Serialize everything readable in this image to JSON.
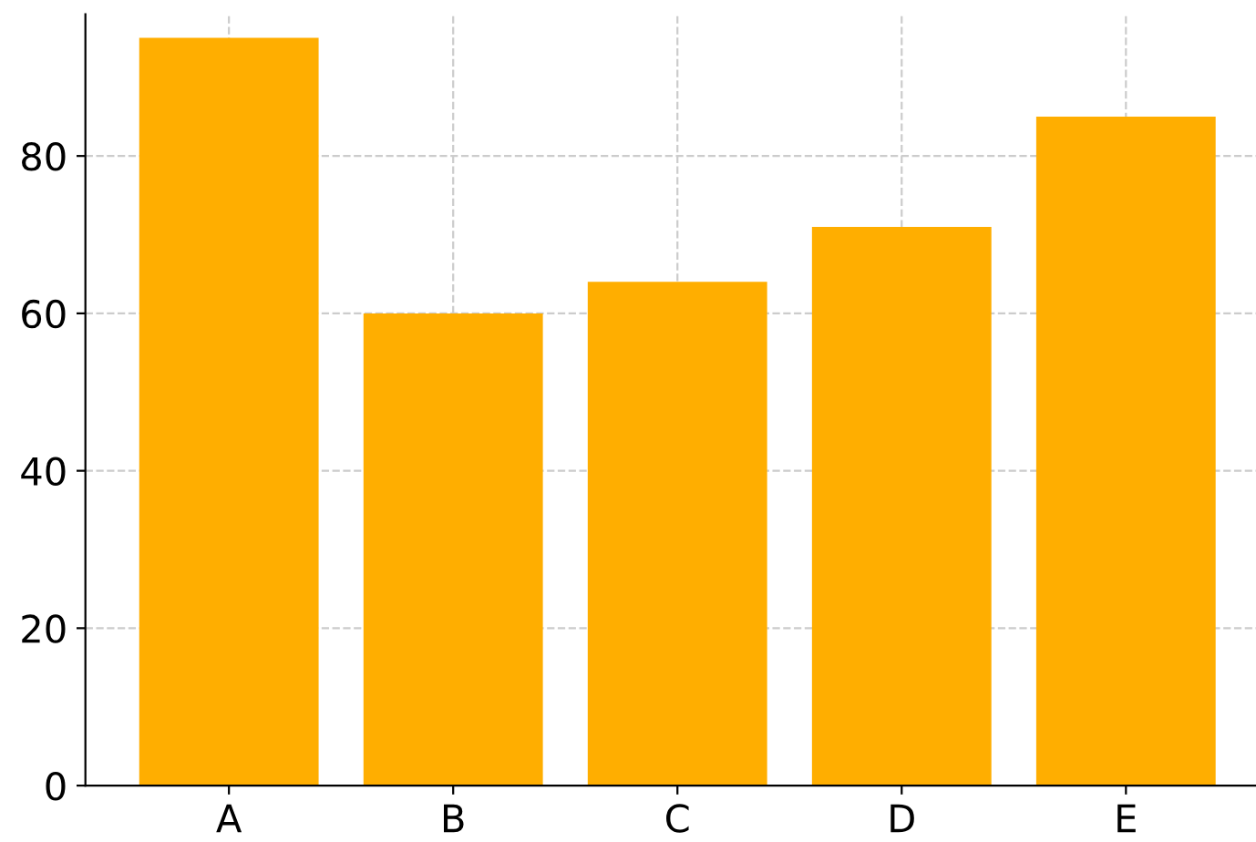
{
  "chart_data": {
    "type": "bar",
    "categories": [
      "A",
      "B",
      "C",
      "D",
      "E"
    ],
    "values": [
      95,
      60,
      64,
      71,
      85
    ],
    "color": "#ffae00",
    "ylim": [
      0,
      98
    ],
    "yticks": [
      0,
      20,
      40,
      60,
      80
    ],
    "grid": true
  }
}
